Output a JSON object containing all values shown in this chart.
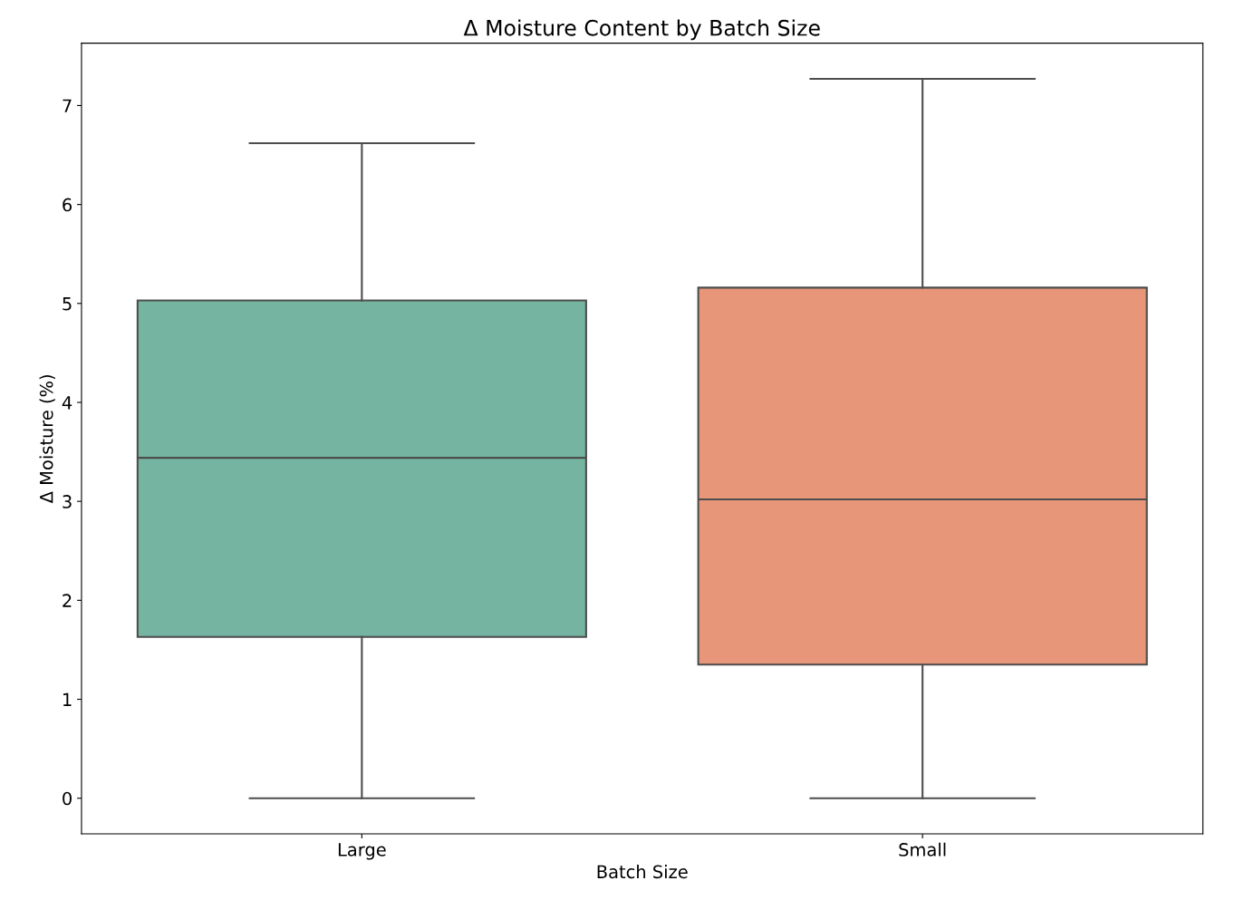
{
  "chart_data": {
    "type": "box",
    "title": "Δ Moisture Content by Batch Size",
    "xlabel": "Batch Size",
    "ylabel": "Δ Moisture (%)",
    "categories": [
      "Large",
      "Small"
    ],
    "boxes": [
      {
        "low": 0,
        "q1": 1.63,
        "median": 3.44,
        "q3": 5.03,
        "high": 6.62
      },
      {
        "low": 0,
        "q1": 1.35,
        "median": 3.02,
        "q3": 5.16,
        "high": 7.27
      }
    ],
    "colors": [
      "#74b4a0",
      "#e8967a"
    ],
    "ylim": [
      -0.36,
      7.63
    ],
    "yticks": [
      0,
      1,
      2,
      3,
      4,
      5,
      6,
      7
    ],
    "grid": false
  }
}
